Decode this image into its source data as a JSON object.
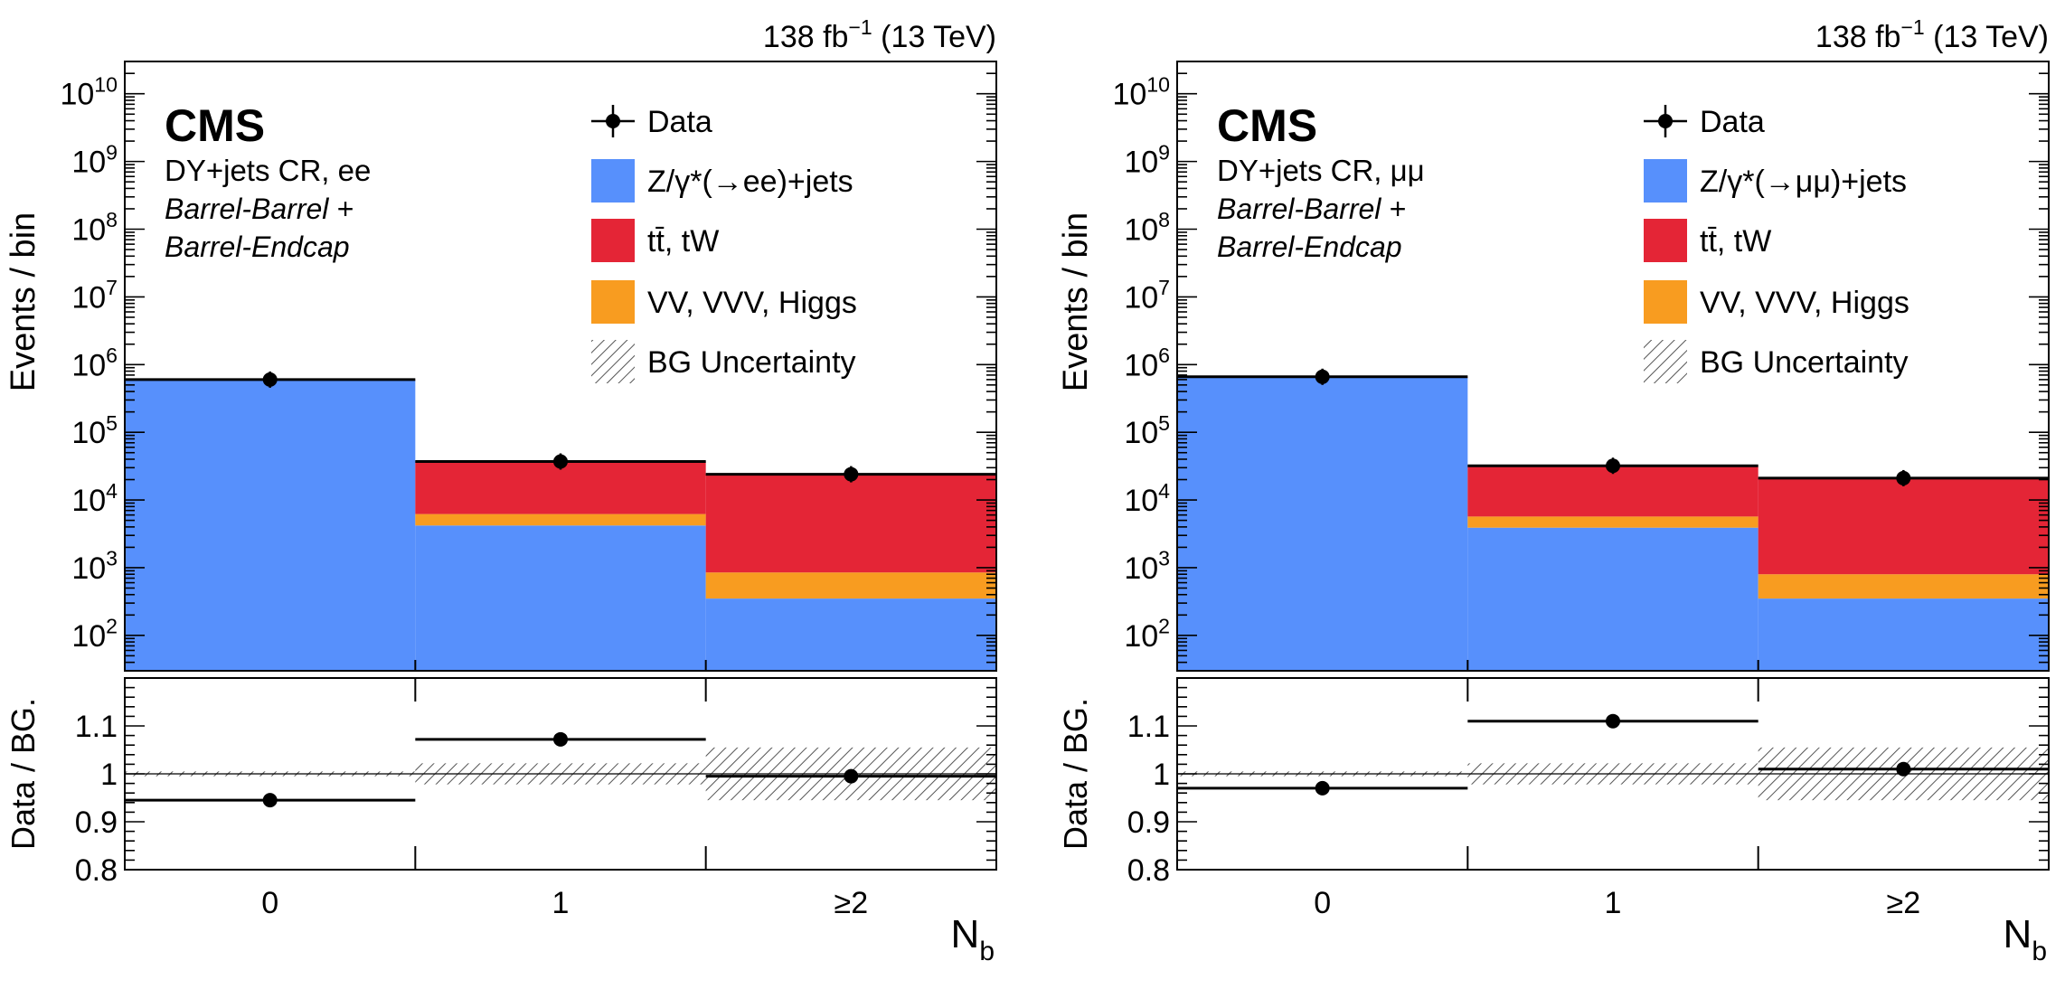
{
  "chart_data": [
    {
      "type": "bar",
      "id": "ee",
      "lumi": "138 fb",
      "lumi_exp": "−1",
      "energy": "(13 TeV)",
      "cms_label": "CMS",
      "region_line": "DY+jets CR, ee",
      "region_italic_1": "Barrel-Barrel +",
      "region_italic_2": "Barrel-Endcap",
      "ylabel": "Events / bin",
      "ratio_ylabel": "Data / BG.",
      "xlabel_main": "N",
      "xlabel_sub": "b",
      "categories": [
        "0",
        "1",
        "≥2"
      ],
      "ylim_log": [
        30,
        30000000000
      ],
      "y_ticks": [
        {
          "value": 100,
          "base": "10",
          "exp": "2"
        },
        {
          "value": 1000,
          "base": "10",
          "exp": "3"
        },
        {
          "value": 10000,
          "base": "10",
          "exp": "4"
        },
        {
          "value": 100000,
          "base": "10",
          "exp": "5"
        },
        {
          "value": 1000000,
          "base": "10",
          "exp": "6"
        },
        {
          "value": 10000000,
          "base": "10",
          "exp": "7"
        },
        {
          "value": 100000000,
          "base": "10",
          "exp": "8"
        },
        {
          "value": 1000000000,
          "base": "10",
          "exp": "9"
        },
        {
          "value": 10000000000,
          "base": "10",
          "exp": "10"
        }
      ],
      "legend": [
        {
          "key": "data",
          "label": "Data"
        },
        {
          "key": "dy",
          "label": "Z/γ*(→ee)+jets"
        },
        {
          "key": "tt",
          "label": "tt̄, tW"
        },
        {
          "key": "vv",
          "label": "VV, VVV, Higgs"
        },
        {
          "key": "unc",
          "label": "BG Uncertainty"
        }
      ],
      "colors": {
        "dy": "#5790fc",
        "tt": "#e42536",
        "vv": "#f89c20"
      },
      "series": [
        {
          "name": "DY",
          "values": [
            580000,
            4200,
            350
          ]
        },
        {
          "name": "ttbar",
          "values": [
            20000,
            31000,
            23000
          ]
        },
        {
          "name": "VV",
          "values": [
            1800,
            2000,
            500
          ]
        }
      ],
      "stack_totals": [
        600000,
        37000,
        24000
      ],
      "data": [
        600000,
        37000,
        24000
      ],
      "ratio": {
        "ylim": [
          0.8,
          1.2
        ],
        "y_ticks": [
          {
            "value": 0.8,
            "label": "0.8"
          },
          {
            "value": 0.9,
            "label": "0.9"
          },
          {
            "value": 1.0,
            "label": "1"
          },
          {
            "value": 1.1,
            "label": "1.1"
          }
        ],
        "values": [
          0.945,
          1.072,
          0.995
        ],
        "errors": [
          0.006,
          0.012,
          0.01
        ],
        "unc_band": [
          0.005,
          0.022,
          0.055
        ]
      }
    },
    {
      "type": "bar",
      "id": "mumu",
      "lumi": "138 fb",
      "lumi_exp": "−1",
      "energy": "(13 TeV)",
      "cms_label": "CMS",
      "region_line": "DY+jets CR,  μμ",
      "region_italic_1": "Barrel-Barrel +",
      "region_italic_2": "Barrel-Endcap",
      "ylabel": "Events / bin",
      "ratio_ylabel": "Data / BG.",
      "xlabel_main": "N",
      "xlabel_sub": "b",
      "categories": [
        "0",
        "1",
        "≥2"
      ],
      "ylim_log": [
        30,
        30000000000
      ],
      "y_ticks": [
        {
          "value": 100,
          "base": "10",
          "exp": "2"
        },
        {
          "value": 1000,
          "base": "10",
          "exp": "3"
        },
        {
          "value": 10000,
          "base": "10",
          "exp": "4"
        },
        {
          "value": 100000,
          "base": "10",
          "exp": "5"
        },
        {
          "value": 1000000,
          "base": "10",
          "exp": "6"
        },
        {
          "value": 10000000,
          "base": "10",
          "exp": "7"
        },
        {
          "value": 100000000,
          "base": "10",
          "exp": "8"
        },
        {
          "value": 1000000000,
          "base": "10",
          "exp": "9"
        },
        {
          "value": 10000000000,
          "base": "10",
          "exp": "10"
        }
      ],
      "legend": [
        {
          "key": "data",
          "label": "Data"
        },
        {
          "key": "dy",
          "label": "Z/γ*(→μμ)+jets"
        },
        {
          "key": "tt",
          "label": "tt̄, tW"
        },
        {
          "key": "vv",
          "label": "VV, VVV, Higgs"
        },
        {
          "key": "unc",
          "label": "BG Uncertainty"
        }
      ],
      "colors": {
        "dy": "#5790fc",
        "tt": "#e42536",
        "vv": "#f89c20"
      },
      "series": [
        {
          "name": "DY",
          "values": [
            640000,
            3900,
            350
          ]
        },
        {
          "name": "ttbar",
          "values": [
            20000,
            26000,
            20000
          ]
        },
        {
          "name": "VV",
          "values": [
            1800,
            1800,
            450
          ]
        }
      ],
      "stack_totals": [
        660000,
        32000,
        21000
      ],
      "data": [
        660000,
        32000,
        21000
      ],
      "ratio": {
        "ylim": [
          0.8,
          1.2
        ],
        "y_ticks": [
          {
            "value": 0.8,
            "label": "0.8"
          },
          {
            "value": 0.9,
            "label": "0.9"
          },
          {
            "value": 1.0,
            "label": "1"
          },
          {
            "value": 1.1,
            "label": "1.1"
          }
        ],
        "values": [
          0.97,
          1.11,
          1.01
        ],
        "errors": [
          0.006,
          0.012,
          0.01
        ],
        "unc_band": [
          0.005,
          0.022,
          0.055
        ]
      }
    }
  ]
}
